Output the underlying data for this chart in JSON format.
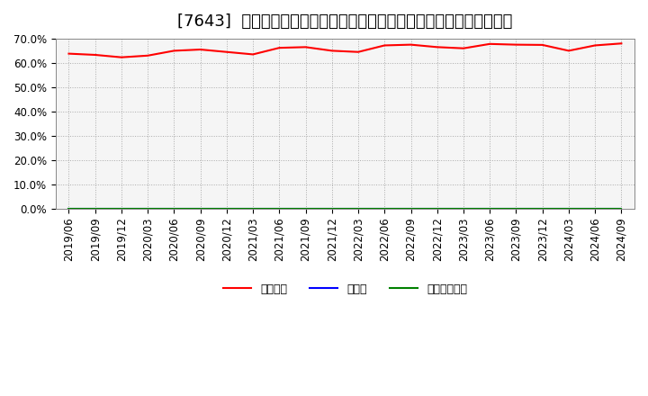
{
  "title": "[7643]  自己資本、のれん、繰延税金資産の総資産に対する比率の推移",
  "equity_dates": [
    "2019/06",
    "2019/09",
    "2019/12",
    "2020/03",
    "2020/06",
    "2020/09",
    "2020/12",
    "2021/03",
    "2021/06",
    "2021/09",
    "2021/12",
    "2022/03",
    "2022/06",
    "2022/09",
    "2022/12",
    "2023/03",
    "2023/06",
    "2023/09",
    "2023/12",
    "2024/03",
    "2024/06",
    "2024/09"
  ],
  "equity_values": [
    63.8,
    63.3,
    62.3,
    63.0,
    65.0,
    65.5,
    64.5,
    63.5,
    66.2,
    66.5,
    65.0,
    64.5,
    67.2,
    67.5,
    66.5,
    66.0,
    67.8,
    67.5,
    67.4,
    65.0,
    67.2,
    68.0
  ],
  "noren_values": [
    0,
    0,
    0,
    0,
    0,
    0,
    0,
    0,
    0,
    0,
    0,
    0,
    0,
    0,
    0,
    0,
    0,
    0,
    0,
    0,
    0,
    0
  ],
  "tax_values": [
    0,
    0,
    0,
    0,
    0,
    0,
    0,
    0,
    0,
    0,
    0,
    0,
    0,
    0,
    0,
    0,
    0,
    0,
    0,
    0,
    0,
    0
  ],
  "equity_color": "#ff0000",
  "noren_color": "#0000ff",
  "tax_color": "#008000",
  "background_color": "#ffffff",
  "grid_color": "#aaaaaa",
  "plot_bg_color": "#f5f5f5",
  "ylim": [
    0.0,
    70.0
  ],
  "yticks": [
    0.0,
    10.0,
    20.0,
    30.0,
    40.0,
    50.0,
    60.0,
    70.0
  ],
  "legend_equity": "自己資本",
  "legend_noren": "のれん",
  "legend_tax": "繰延税金資産",
  "title_fontsize": 13,
  "tick_fontsize": 8.5,
  "legend_fontsize": 9
}
